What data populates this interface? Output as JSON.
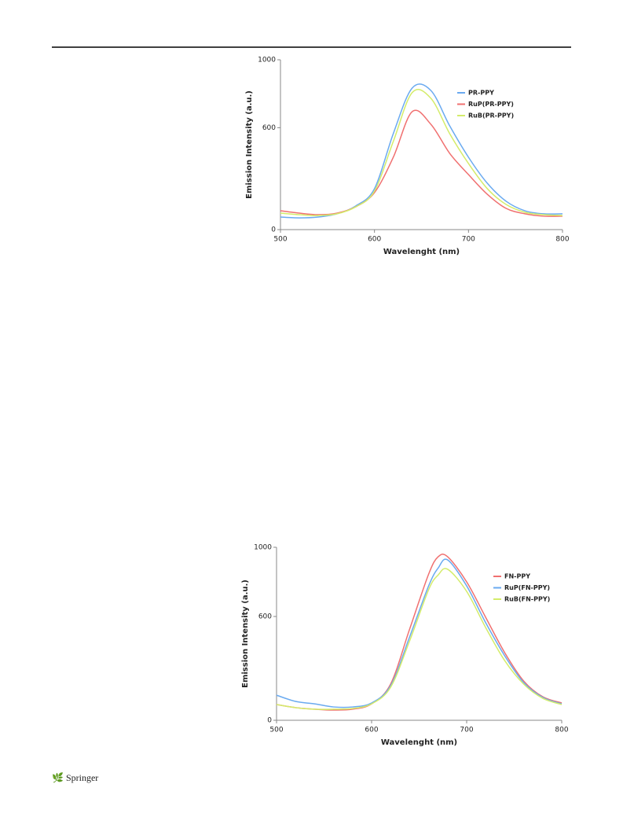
{
  "footer": "Springer",
  "chart_data": [
    {
      "type": "line",
      "xlabel": "Wavelenght (nm)",
      "ylabel": "Emission Intensity (a.u.)",
      "xlim": [
        500,
        800
      ],
      "xticks": [
        500,
        600,
        700,
        800
      ],
      "ylim": [
        0,
        1000
      ],
      "yticks": [
        0,
        600,
        1000
      ],
      "x": [
        500,
        520,
        540,
        560,
        580,
        600,
        620,
        640,
        660,
        680,
        700,
        720,
        740,
        760,
        780,
        800
      ],
      "series": [
        {
          "name": "PR-PPY",
          "color": "#6aaaf0",
          "values": [
            74,
            69,
            74,
            93,
            139,
            241,
            565,
            833,
            819,
            611,
            426,
            273,
            167,
            111,
            93,
            93
          ]
        },
        {
          "name": "RuP(PR-PPY)",
          "color": "#f07070",
          "values": [
            111,
            97,
            88,
            97,
            134,
            218,
            426,
            694,
            620,
            449,
            324,
            208,
            125,
            93,
            79,
            79
          ]
        },
        {
          "name": "RuB(PR-PPY)",
          "color": "#d4ec6a",
          "values": [
            97,
            88,
            83,
            93,
            134,
            227,
            519,
            806,
            773,
            565,
            389,
            241,
            148,
            102,
            88,
            83
          ]
        }
      ]
    },
    {
      "type": "line",
      "xlabel": "Wavelenght (nm)",
      "ylabel": "Emission Intensity (a.u.)",
      "xlim": [
        500,
        800
      ],
      "xticks": [
        500,
        600,
        700,
        800
      ],
      "ylim": [
        0,
        1000
      ],
      "yticks": [
        0,
        600,
        1000
      ],
      "x": [
        500,
        520,
        540,
        560,
        580,
        600,
        620,
        640,
        660,
        670,
        680,
        700,
        720,
        740,
        760,
        780,
        800
      ],
      "series": [
        {
          "name": "FN-PPY",
          "color": "#f07070",
          "values": [
            91,
            73,
            64,
            59,
            64,
            95,
            209,
            527,
            845,
            945,
            945,
            800,
            595,
            391,
            227,
            136,
            100
          ]
        },
        {
          "name": "RuP(FN-PPY)",
          "color": "#6aaaf0",
          "values": [
            145,
            109,
            95,
            77,
            77,
            100,
            200,
            482,
            777,
            880,
            927,
            777,
            564,
            373,
            218,
            132,
            95
          ]
        },
        {
          "name": "RuB(FN-PPY)",
          "color": "#d4ec6a",
          "values": [
            91,
            73,
            64,
            64,
            68,
            95,
            191,
            459,
            755,
            840,
            873,
            745,
            536,
            345,
            209,
            127,
            91
          ]
        }
      ]
    }
  ]
}
